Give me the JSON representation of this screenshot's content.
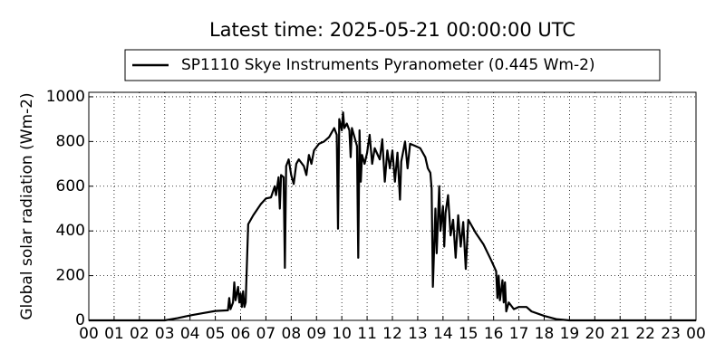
{
  "chart_data": {
    "type": "line",
    "title": "Latest time: 2025-05-21 00:00:00 UTC",
    "y_label": "Global solar radiation (Wm-2)",
    "series": [
      {
        "name": "SP1110 Skye Instruments Pyranometer (0.445 Wm-2)",
        "color": "#000000",
        "x": [
          0,
          3.0,
          3.5,
          4.0,
          4.5,
          5.0,
          5.5,
          5.55,
          5.6,
          5.7,
          5.75,
          5.8,
          5.9,
          5.95,
          6.0,
          6.05,
          6.1,
          6.15,
          6.2,
          6.3,
          6.5,
          6.8,
          7.0,
          7.2,
          7.35,
          7.4,
          7.5,
          7.55,
          7.6,
          7.7,
          7.75,
          7.8,
          7.9,
          8.0,
          8.1,
          8.2,
          8.3,
          8.5,
          8.6,
          8.7,
          8.8,
          8.9,
          9.1,
          9.3,
          9.5,
          9.6,
          9.7,
          9.8,
          9.85,
          9.9,
          10.0,
          10.05,
          10.1,
          10.2,
          10.3,
          10.35,
          10.4,
          10.5,
          10.6,
          10.65,
          10.7,
          10.75,
          10.8,
          10.9,
          11.0,
          11.1,
          11.2,
          11.3,
          11.5,
          11.6,
          11.7,
          11.8,
          11.9,
          12.0,
          12.1,
          12.2,
          12.3,
          12.35,
          12.5,
          12.6,
          12.7,
          12.9,
          13.1,
          13.3,
          13.4,
          13.5,
          13.55,
          13.6,
          13.7,
          13.75,
          13.85,
          13.9,
          14.0,
          14.05,
          14.1,
          14.2,
          14.3,
          14.4,
          14.5,
          14.6,
          14.7,
          14.8,
          14.9,
          15.0,
          15.1,
          15.3,
          15.6,
          15.9,
          16.1,
          16.15,
          16.2,
          16.25,
          16.35,
          16.4,
          16.45,
          16.5,
          16.6,
          16.8,
          17.0,
          17.3,
          17.5,
          18.0,
          18.5,
          19.0,
          24
        ],
        "values": [
          0,
          0,
          10,
          22,
          32,
          42,
          45,
          100,
          50,
          80,
          170,
          90,
          150,
          80,
          120,
          60,
          130,
          60,
          80,
          430,
          470,
          520,
          545,
          550,
          600,
          560,
          640,
          500,
          650,
          640,
          235,
          690,
          720,
          650,
          610,
          700,
          720,
          690,
          650,
          740,
          700,
          760,
          790,
          800,
          820,
          840,
          860,
          830,
          410,
          900,
          850,
          930,
          860,
          880,
          850,
          730,
          860,
          820,
          780,
          280,
          850,
          620,
          740,
          700,
          750,
          830,
          700,
          770,
          720,
          810,
          620,
          760,
          680,
          760,
          620,
          750,
          540,
          710,
          800,
          680,
          790,
          780,
          770,
          730,
          680,
          660,
          590,
          150,
          500,
          300,
          600,
          400,
          510,
          330,
          480,
          560,
          380,
          450,
          280,
          470,
          330,
          440,
          230,
          450,
          430,
          390,
          340,
          270,
          220,
          100,
          200,
          90,
          180,
          80,
          170,
          40,
          80,
          50,
          60,
          60,
          40,
          20,
          5,
          0,
          0
        ]
      }
    ],
    "xlim": [
      0,
      24
    ],
    "ylim": [
      0,
      1020
    ],
    "xticks": [
      {
        "value": 0,
        "label": "00"
      },
      {
        "value": 1,
        "label": "01"
      },
      {
        "value": 2,
        "label": "02"
      },
      {
        "value": 3,
        "label": "03"
      },
      {
        "value": 4,
        "label": "04"
      },
      {
        "value": 5,
        "label": "05"
      },
      {
        "value": 6,
        "label": "06"
      },
      {
        "value": 7,
        "label": "07"
      },
      {
        "value": 8,
        "label": "08"
      },
      {
        "value": 9,
        "label": "09"
      },
      {
        "value": 10,
        "label": "10"
      },
      {
        "value": 11,
        "label": "11"
      },
      {
        "value": 12,
        "label": "12"
      },
      {
        "value": 13,
        "label": "13"
      },
      {
        "value": 14,
        "label": "14"
      },
      {
        "value": 15,
        "label": "15"
      },
      {
        "value": 16,
        "label": "16"
      },
      {
        "value": 17,
        "label": "17"
      },
      {
        "value": 18,
        "label": "18"
      },
      {
        "value": 19,
        "label": "19"
      },
      {
        "value": 20,
        "label": "20"
      },
      {
        "value": 21,
        "label": "21"
      },
      {
        "value": 22,
        "label": "22"
      },
      {
        "value": 23,
        "label": "23"
      },
      {
        "value": 24,
        "label": "00"
      }
    ],
    "yticks": [
      0,
      200,
      400,
      600,
      800,
      1000
    ],
    "grid": true
  }
}
